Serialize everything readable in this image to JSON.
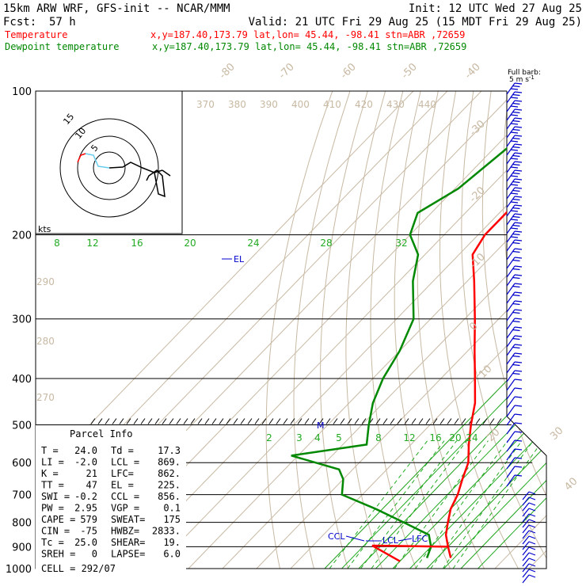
{
  "header": {
    "model": "15km ARW WRF, GFS-init  -- NCAR/MMM",
    "init": "Init: 12 UTC Wed 27 Aug 25",
    "fcst_label": "Fcst:",
    "fcst_value": "57 h",
    "valid": "Valid: 21 UTC Fri 29 Aug 25 (15 MDT Fri 29 Aug 25)",
    "temp_label": "Temperature",
    "temp_info": "x,y=187.40,173.79   lat,lon= 45.44, -98.41   stn=ABR ,72659",
    "dew_label": "Dewpoint temperature",
    "dew_info": "x,y=187.40,173.79   lat,lon= 45.44, -98.41   stn=ABR ,72659"
  },
  "barb_header": {
    "line1": "Full barb:",
    "line2": "5 m s",
    "sup": "-1"
  },
  "colors": {
    "temperature": "#ff0000",
    "dewpoint": "#008800",
    "wind_barbs": "#0000cc",
    "grid_tan": "#c8b9a3",
    "mixing_ratio": "#22aa22",
    "hodo_light": "#66ccee"
  },
  "hodograph": {
    "units": "kts",
    "rings": [
      "5",
      "10",
      "15"
    ],
    "labels_note": "ring labels 5, 10, 15"
  },
  "theta_labels": [
    "370",
    "380",
    "390",
    "400",
    "410",
    "420",
    "430",
    "440"
  ],
  "theta_low_labels": [
    "290",
    "280",
    "270"
  ],
  "temp_axis_labels": [
    "-80",
    "-70",
    "-60",
    "-50",
    "-40",
    "-30",
    "-20",
    "-10",
    "0",
    "10",
    "20",
    "30",
    "40"
  ],
  "theta_e_labels": [
    "8",
    "12",
    "16",
    "20",
    "24",
    "28",
    "32"
  ],
  "mixing_labels": [
    "2",
    "3",
    "4",
    "5",
    "8",
    "12",
    "16",
    "20",
    "24"
  ],
  "markers": {
    "el": "EL",
    "m": "M",
    "ccl": "CCL",
    "lcl": "LCL",
    "lfc": "LFC"
  },
  "parcel_info": {
    "title": "Parcel Info",
    "rows": [
      [
        "T   =",
        "24.0",
        "Td =",
        "17.3"
      ],
      [
        "LI  =",
        "-2.0",
        "LCL =",
        "869."
      ],
      [
        "K   =",
        "21",
        "LFC=",
        "862."
      ],
      [
        "TT  =",
        "47",
        "EL  =",
        "225."
      ],
      [
        "SWI =",
        "-0.2",
        "CCL =",
        "856."
      ],
      [
        "PW  =",
        "2.95",
        "VGP =",
        "0.1"
      ],
      [
        "CAPE =",
        "579",
        "SWEAT=",
        "175"
      ],
      [
        "CIN  =",
        "-75",
        "HWBZ=",
        "2833."
      ],
      [
        "Tc  =",
        "25.0",
        "SHEAR=",
        "19."
      ],
      [
        "SREH =",
        "0",
        "LAPSE=",
        "6.0"
      ]
    ],
    "cell": "CELL = 292/07"
  },
  "chart_data": {
    "type": "line",
    "title": "Skew-T log-p sounding",
    "ylabel": "",
    "y_ticks": [
      "100",
      "200",
      "300",
      "400",
      "500",
      "600",
      "700",
      "800",
      "900",
      "1000"
    ],
    "series": [
      {
        "name": "Temperature",
        "color": "#ff0000",
        "points_p_T": [
          [
            100,
            -59
          ],
          [
            120,
            -61
          ],
          [
            150,
            -60
          ],
          [
            180,
            -58
          ],
          [
            200,
            -58
          ],
          [
            220,
            -56
          ],
          [
            250,
            -48
          ],
          [
            300,
            -37
          ],
          [
            350,
            -28
          ],
          [
            400,
            -20
          ],
          [
            450,
            -13
          ],
          [
            500,
            -8
          ],
          [
            550,
            -3
          ],
          [
            600,
            2
          ],
          [
            650,
            5
          ],
          [
            700,
            8
          ],
          [
            750,
            10
          ],
          [
            800,
            13
          ],
          [
            850,
            16
          ],
          [
            900,
            20
          ],
          [
            950,
            24
          ]
        ]
      },
      {
        "name": "Dewpoint temperature",
        "color": "#008800",
        "points_p_T": [
          [
            100,
            -76
          ],
          [
            130,
            -76
          ],
          [
            160,
            -79
          ],
          [
            180,
            -84
          ],
          [
            200,
            -80
          ],
          [
            220,
            -72
          ],
          [
            250,
            -66
          ],
          [
            300,
            -55
          ],
          [
            350,
            -50
          ],
          [
            400,
            -47
          ],
          [
            450,
            -43
          ],
          [
            500,
            -38
          ],
          [
            550,
            -33
          ],
          [
            580,
            -52
          ],
          [
            620,
            -34
          ],
          [
            650,
            -30
          ],
          [
            700,
            -26
          ],
          [
            750,
            -12
          ],
          [
            800,
            0
          ],
          [
            850,
            11
          ],
          [
            900,
            15
          ],
          [
            950,
            17
          ]
        ]
      }
    ]
  }
}
